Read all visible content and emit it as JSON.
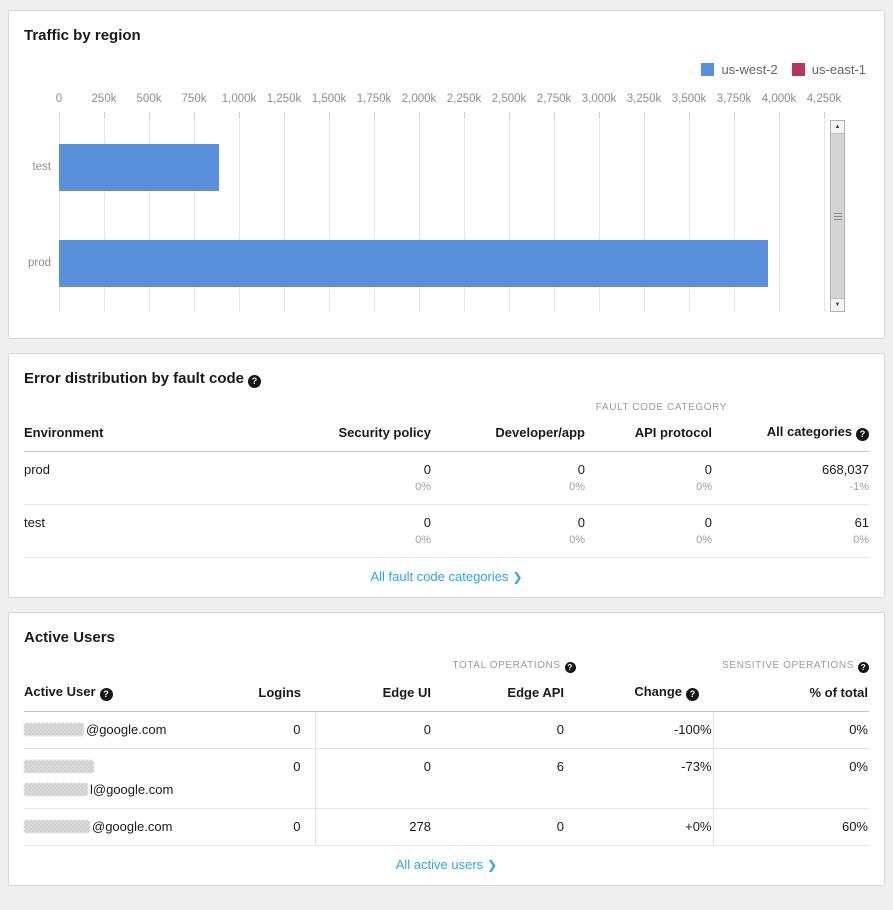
{
  "traffic_card": {
    "title": "Traffic by region"
  },
  "chart_data": {
    "type": "bar",
    "orientation": "horizontal",
    "title": "Traffic by region",
    "categories": [
      "test",
      "prod"
    ],
    "series": [
      {
        "name": "us-west-2",
        "color": "#5990dc",
        "values": [
          890000,
          3940000
        ]
      },
      {
        "name": "us-east-1",
        "color": "#b73463",
        "values": [
          0,
          0
        ]
      }
    ],
    "x_ticks": [
      "0",
      "250k",
      "500k",
      "750k",
      "1,000k",
      "1,250k",
      "1,500k",
      "1,750k",
      "2,000k",
      "2,250k",
      "2,500k",
      "2,750k",
      "3,000k",
      "3,250k",
      "3,500k",
      "3,750k",
      "4,000k",
      "4,250k"
    ],
    "x_max": 4250000,
    "tick_step": 250000,
    "xlabel": "",
    "ylabel": "",
    "grid": true,
    "legend_position": "top-right"
  },
  "error_card": {
    "title": "Error distribution by fault code",
    "group_header": "FAULT CODE CATEGORY",
    "columns": {
      "environment": "Environment",
      "security_policy": "Security policy",
      "developer_app": "Developer/app",
      "api_protocol": "API protocol",
      "all_categories": "All categories"
    },
    "rows": [
      {
        "env": "prod",
        "security_policy": {
          "value": "0",
          "sub": "0%"
        },
        "developer_app": {
          "value": "0",
          "sub": "0%"
        },
        "api_protocol": {
          "value": "0",
          "sub": "0%"
        },
        "all_categories": {
          "value": "668,037",
          "sub": "-1%"
        }
      },
      {
        "env": "test",
        "security_policy": {
          "value": "0",
          "sub": "0%"
        },
        "developer_app": {
          "value": "0",
          "sub": "0%"
        },
        "api_protocol": {
          "value": "0",
          "sub": "0%"
        },
        "all_categories": {
          "value": "61",
          "sub": "0%"
        }
      }
    ],
    "link_label": "All fault code categories"
  },
  "active_users_card": {
    "title": "Active Users",
    "group_headers": {
      "total_operations": "TOTAL OPERATIONS",
      "sensitive_operations": "SENSITIVE OPERATIONS"
    },
    "columns": {
      "active_user": "Active User",
      "logins": "Logins",
      "edge_ui": "Edge UI",
      "edge_api": "Edge API",
      "change": "Change",
      "pct_total": "% of total"
    },
    "rows": [
      {
        "email_visible": "@google.com",
        "logins": "0",
        "edge_ui": "0",
        "edge_api": "0",
        "change": "-100%",
        "pct_total": "0%"
      },
      {
        "email_visible": "l@google.com",
        "logins": "0",
        "edge_ui": "0",
        "edge_api": "6",
        "change": "-73%",
        "pct_total": "0%"
      },
      {
        "email_visible": "@google.com",
        "logins": "0",
        "edge_ui": "278",
        "edge_api": "0",
        "change": "+0%",
        "pct_total": "60%"
      }
    ],
    "link_label": "All active users"
  },
  "icons": {
    "help": "?",
    "chevron_right": "❯",
    "scroll_up": "▲",
    "scroll_down": "▼"
  },
  "colors": {
    "bar_blue": "#5990dc",
    "legend_red": "#b73463",
    "link_blue": "#29a8e0",
    "page_bg": "#efeff0"
  }
}
